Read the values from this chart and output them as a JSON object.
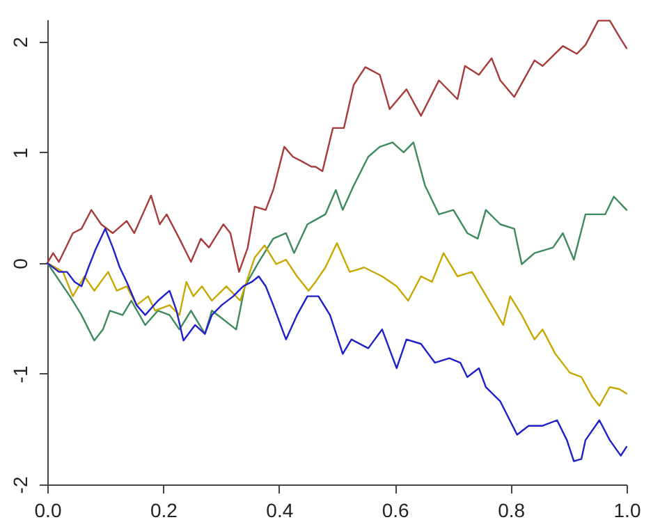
{
  "chart_data": {
    "type": "line",
    "xlim": [
      0,
      1
    ],
    "ylim": [
      -2,
      2.2
    ],
    "xticks": [
      {
        "value": 0,
        "label": "0.0"
      },
      {
        "value": 0.2,
        "label": "0.2"
      },
      {
        "value": 0.4,
        "label": "0.4"
      },
      {
        "value": 0.6,
        "label": "0.6"
      },
      {
        "value": 0.8,
        "label": "0.8"
      },
      {
        "value": 1,
        "label": "1.0"
      }
    ],
    "yticks": [
      -2,
      -1,
      0,
      1,
      2
    ],
    "grid": false,
    "marker": "none",
    "line_style": "solid",
    "series": [
      {
        "color": "#a83a3a",
        "x": [
          0,
          0.01,
          0.02,
          0.044,
          0.059,
          0.076,
          0.093,
          0.113,
          0.137,
          0.15,
          0.179,
          0.194,
          0.206,
          0.228,
          0.248,
          0.265,
          0.279,
          0.304,
          0.316,
          0.331,
          0.346,
          0.358,
          0.377,
          0.39,
          0.409,
          0.424,
          0.439,
          0.456,
          0.463,
          0.475,
          0.493,
          0.512,
          0.529,
          0.549,
          0.574,
          0.591,
          0.62,
          0.645,
          0.676,
          0.708,
          0.721,
          0.745,
          0.767,
          0.782,
          0.806,
          0.841,
          0.855,
          0.89,
          0.914,
          0.929,
          0.951,
          0.971,
          0.988,
          1.0
        ],
        "values": [
          0,
          0.09,
          0.01,
          0.27,
          0.31,
          0.48,
          0.35,
          0.27,
          0.38,
          0.27,
          0.61,
          0.35,
          0.44,
          0.22,
          0.01,
          0.22,
          0.14,
          0.35,
          0.27,
          -0.08,
          0.14,
          0.51,
          0.48,
          0.66,
          1.05,
          0.96,
          0.92,
          0.87,
          0.87,
          0.83,
          1.22,
          1.22,
          1.61,
          1.77,
          1.7,
          1.39,
          1.57,
          1.33,
          1.65,
          1.48,
          1.78,
          1.7,
          1.85,
          1.65,
          1.5,
          1.83,
          1.78,
          1.96,
          1.89,
          1.97,
          2.19,
          2.19,
          2.04,
          1.94
        ]
      },
      {
        "color": "#3d8a5e",
        "x": [
          0,
          0.022,
          0.039,
          0.059,
          0.081,
          0.096,
          0.108,
          0.13,
          0.145,
          0.169,
          0.191,
          0.211,
          0.228,
          0.248,
          0.272,
          0.284,
          0.304,
          0.326,
          0.341,
          0.365,
          0.39,
          0.412,
          0.426,
          0.449,
          0.48,
          0.498,
          0.51,
          0.529,
          0.554,
          0.574,
          0.596,
          0.615,
          0.632,
          0.652,
          0.676,
          0.701,
          0.725,
          0.743,
          0.757,
          0.782,
          0.806,
          0.819,
          0.841,
          0.873,
          0.89,
          0.909,
          0.929,
          0.963,
          0.978,
          1.0
        ],
        "values": [
          0,
          -0.17,
          -0.3,
          -0.47,
          -0.7,
          -0.6,
          -0.43,
          -0.47,
          -0.34,
          -0.56,
          -0.43,
          -0.47,
          -0.6,
          -0.43,
          -0.64,
          -0.43,
          -0.51,
          -0.6,
          -0.21,
          0.01,
          0.22,
          0.27,
          0.09,
          0.35,
          0.44,
          0.66,
          0.48,
          0.7,
          0.96,
          1.05,
          1.09,
          1.0,
          1.09,
          0.7,
          0.44,
          0.48,
          0.27,
          0.22,
          0.48,
          0.35,
          0.31,
          -0.01,
          0.09,
          0.14,
          0.27,
          0.03,
          0.44,
          0.44,
          0.6,
          0.48
        ]
      },
      {
        "color": "#c8a800",
        "x": [
          0,
          0.027,
          0.044,
          0.064,
          0.081,
          0.105,
          0.12,
          0.137,
          0.154,
          0.174,
          0.186,
          0.211,
          0.228,
          0.24,
          0.252,
          0.267,
          0.284,
          0.309,
          0.333,
          0.358,
          0.375,
          0.395,
          0.412,
          0.431,
          0.451,
          0.463,
          0.48,
          0.5,
          0.522,
          0.547,
          0.578,
          0.603,
          0.623,
          0.645,
          0.664,
          0.684,
          0.708,
          0.733,
          0.767,
          0.787,
          0.799,
          0.819,
          0.841,
          0.855,
          0.877,
          0.902,
          0.922,
          0.941,
          0.953,
          0.971,
          0.988,
          1.0
        ],
        "values": [
          0,
          -0.08,
          -0.3,
          -0.12,
          -0.25,
          -0.08,
          -0.25,
          -0.21,
          -0.38,
          -0.3,
          -0.43,
          -0.38,
          -0.47,
          -0.17,
          -0.3,
          -0.21,
          -0.34,
          -0.21,
          -0.34,
          0.05,
          0.16,
          -0.01,
          0.03,
          -0.12,
          -0.25,
          -0.17,
          -0.04,
          0.18,
          -0.08,
          -0.04,
          -0.12,
          -0.21,
          -0.34,
          -0.12,
          -0.17,
          0.09,
          -0.12,
          -0.08,
          -0.38,
          -0.56,
          -0.3,
          -0.47,
          -0.69,
          -0.6,
          -0.82,
          -0.99,
          -1.03,
          -1.21,
          -1.29,
          -1.12,
          -1.14,
          -1.18
        ]
      },
      {
        "color": "#1f1fcc",
        "x": [
          0,
          0.02,
          0.034,
          0.047,
          0.059,
          0.071,
          0.083,
          0.1,
          0.113,
          0.125,
          0.137,
          0.154,
          0.169,
          0.191,
          0.211,
          0.223,
          0.235,
          0.255,
          0.272,
          0.284,
          0.301,
          0.321,
          0.338,
          0.353,
          0.365,
          0.377,
          0.39,
          0.412,
          0.431,
          0.449,
          0.468,
          0.488,
          0.51,
          0.525,
          0.554,
          0.578,
          0.603,
          0.62,
          0.645,
          0.669,
          0.694,
          0.713,
          0.725,
          0.745,
          0.757,
          0.782,
          0.811,
          0.831,
          0.855,
          0.88,
          0.897,
          0.909,
          0.922,
          0.929,
          0.953,
          0.971,
          0.99,
          1.0
        ],
        "values": [
          0,
          -0.08,
          -0.08,
          -0.17,
          -0.21,
          -0.04,
          0.12,
          0.31,
          0.14,
          -0.04,
          -0.17,
          -0.38,
          -0.47,
          -0.34,
          -0.25,
          -0.43,
          -0.7,
          -0.56,
          -0.64,
          -0.47,
          -0.38,
          -0.3,
          -0.21,
          -0.17,
          -0.12,
          -0.21,
          -0.38,
          -0.69,
          -0.47,
          -0.3,
          -0.3,
          -0.47,
          -0.82,
          -0.69,
          -0.77,
          -0.6,
          -0.95,
          -0.69,
          -0.73,
          -0.9,
          -0.86,
          -0.9,
          -1.03,
          -0.95,
          -1.12,
          -1.25,
          -1.55,
          -1.47,
          -1.47,
          -1.42,
          -1.6,
          -1.79,
          -1.77,
          -1.6,
          -1.42,
          -1.6,
          -1.74,
          -1.66
        ]
      }
    ]
  }
}
